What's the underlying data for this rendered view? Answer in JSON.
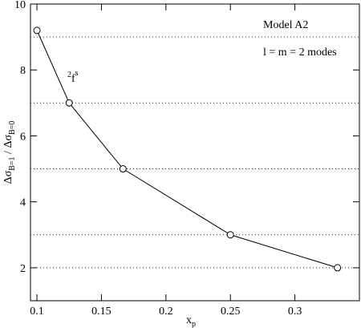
{
  "chart_data": {
    "type": "line",
    "x": [
      0.1,
      0.125,
      0.1667,
      0.25,
      0.333
    ],
    "series": [
      {
        "color": "#000000",
        "values": [
          9.2,
          7,
          5,
          3,
          2
        ]
      }
    ],
    "xlim": [
      0.095,
      0.35
    ],
    "ylim": [
      1,
      10
    ],
    "xticks": [
      0.1,
      0.15,
      0.2,
      0.25,
      0.3
    ],
    "yticks": [
      2,
      4,
      6,
      8,
      10
    ],
    "reference_lines": [
      9,
      7,
      5,
      3,
      2
    ],
    "x_label": {
      "main": "x",
      "sub": "p"
    },
    "y_label": {
      "p1": "Δσ",
      "s1": "B=1",
      "p2": " / Δσ",
      "s2": "B=0"
    },
    "annotations": {
      "model": "Model A2",
      "modes": "l = m = 2 modes",
      "sup_left": "2",
      "base": "f",
      "sup_right": "s"
    }
  }
}
